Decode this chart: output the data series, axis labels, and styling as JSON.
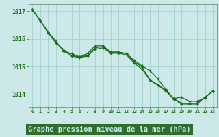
{
  "background_color": "#cce8e8",
  "plot_bg_color": "#cce8e8",
  "grid_color": "#aad4d4",
  "line_color": "#1a6e1a",
  "xlabel": "Graphe pression niveau de la mer (hPa)",
  "xlabel_fontsize": 7.5,
  "xlabel_bg": "#2d6e2d",
  "xlabel_fg": "#cce8e8",
  "ytick_labels": [
    "1014",
    "1015",
    "1016",
    "1017"
  ],
  "ylim": [
    1013.55,
    1017.25
  ],
  "xlim": [
    -0.5,
    23.5
  ],
  "series1_x": [
    0,
    1,
    2,
    3,
    4,
    5,
    6,
    7,
    8,
    9,
    10,
    11,
    12,
    13,
    14,
    15,
    16,
    17,
    18,
    19,
    20,
    21,
    22,
    23
  ],
  "series1_y": [
    1017.05,
    1016.65,
    1016.25,
    1015.9,
    1015.55,
    1015.47,
    1015.35,
    1015.47,
    1015.75,
    1015.75,
    1015.52,
    1015.52,
    1015.47,
    1015.22,
    1015.02,
    1014.85,
    1014.55,
    1014.18,
    1013.85,
    1013.9,
    1013.75,
    1013.75,
    1013.88,
    1014.12
  ],
  "series2_x": [
    0,
    1,
    2,
    3,
    4,
    5,
    6,
    7,
    8,
    9,
    10,
    11,
    12,
    13,
    14,
    15,
    16,
    17,
    18,
    19,
    20,
    21,
    22,
    23
  ],
  "series2_y": [
    1017.05,
    1016.65,
    1016.25,
    1015.9,
    1015.55,
    1015.4,
    1015.35,
    1015.4,
    1015.68,
    1015.72,
    1015.52,
    1015.52,
    1015.47,
    1015.18,
    1014.97,
    1014.52,
    1014.35,
    1014.15,
    1013.85,
    1013.68,
    1013.68,
    1013.68,
    1013.9,
    1014.12
  ],
  "series3_x": [
    0,
    1,
    2,
    3,
    5,
    6,
    7,
    8,
    9,
    10,
    11,
    12,
    13,
    14,
    15,
    16,
    17,
    18,
    19,
    20,
    21,
    22,
    23
  ],
  "series3_y": [
    1017.05,
    1016.65,
    1016.22,
    1015.85,
    1015.38,
    1015.32,
    1015.38,
    1015.62,
    1015.68,
    1015.48,
    1015.48,
    1015.42,
    1015.12,
    1014.9,
    1014.5,
    1014.33,
    1014.12,
    1013.83,
    1013.65,
    1013.65,
    1013.65,
    1013.9,
    1014.12
  ]
}
